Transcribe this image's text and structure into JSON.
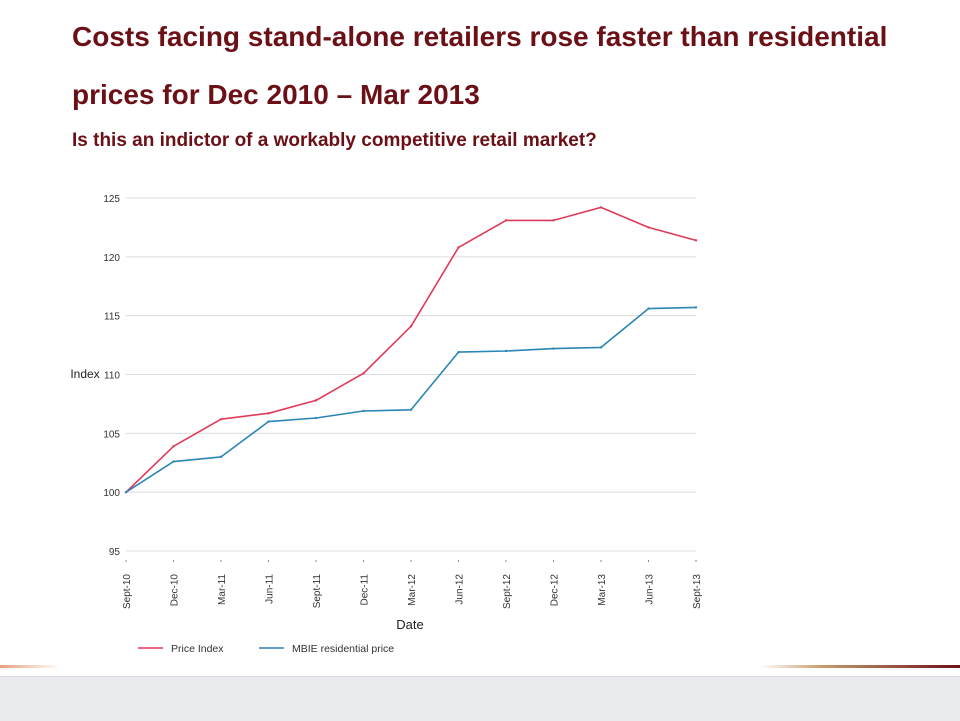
{
  "slide": {
    "title": "Costs facing stand-alone retailers rose faster than residential prices for Dec 2010 – Mar 2013",
    "subtitle": "Is this an indictor of a workably competitive retail market?"
  },
  "chart_data": {
    "type": "line",
    "xlabel": "Date",
    "ylabel": "Index",
    "categories": [
      "Sept-10",
      "Dec-10",
      "Mar-11",
      "Jun-11",
      "Sept-11",
      "Dec-11",
      "Mar-12",
      "Jun-12",
      "Sept-12",
      "Dec-12",
      "Mar-13",
      "Jun-13",
      "Sept-13"
    ],
    "ylim": [
      95,
      125
    ],
    "yticks": [
      95,
      100,
      105,
      110,
      115,
      120,
      125
    ],
    "grid": "horizontal",
    "legend_position": "bottom",
    "series": [
      {
        "name": "Price Index",
        "color": "#e03a5a",
        "values": [
          100,
          103.9,
          106.2,
          106.7,
          107.8,
          110.1,
          114.1,
          120.8,
          123.1,
          123.1,
          124.2,
          122.5,
          121.4
        ]
      },
      {
        "name": "MBIE residential price",
        "color": "#2a86b4",
        "values": [
          100,
          102.6,
          103.0,
          106.0,
          106.3,
          106.9,
          107.0,
          111.9,
          112.0,
          112.2,
          112.3,
          115.6,
          115.7
        ]
      }
    ]
  }
}
